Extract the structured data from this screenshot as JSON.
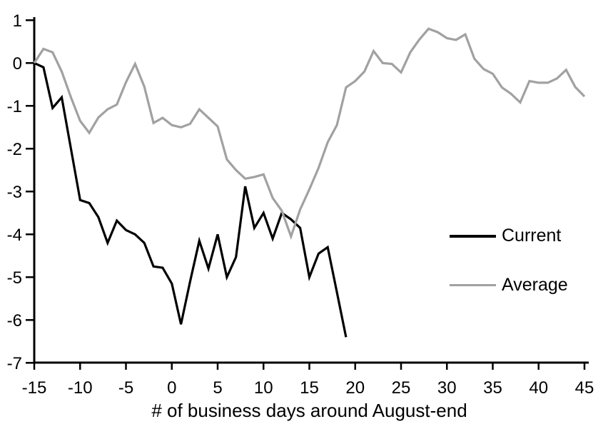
{
  "chart_data": {
    "type": "line",
    "title": "",
    "xlabel": "# of business days around August-end",
    "ylabel": "",
    "xlim": [
      -15,
      45
    ],
    "ylim": [
      -7,
      1
    ],
    "xticks": [
      -15,
      -10,
      -5,
      0,
      5,
      10,
      15,
      20,
      25,
      30,
      35,
      40,
      45
    ],
    "yticks": [
      1,
      0,
      -1,
      -2,
      -3,
      -4,
      -5,
      -6,
      -7
    ],
    "grid": false,
    "legend_position": "right-middle",
    "axis_color": "#000000",
    "series": [
      {
        "name": "Current",
        "color": "#000000",
        "x": [
          -15,
          -14,
          -13,
          -12,
          -11,
          -10,
          -9,
          -8,
          -7,
          -6,
          -5,
          -4,
          -3,
          -2,
          -1,
          0,
          1,
          2,
          3,
          4,
          5,
          6,
          7,
          8,
          9,
          10,
          11,
          12,
          13,
          14,
          15,
          16,
          17,
          18,
          19
        ],
        "values": [
          0.0,
          -0.1,
          -1.05,
          -0.8,
          -2.0,
          -3.2,
          -3.27,
          -3.6,
          -4.2,
          -3.68,
          -3.9,
          -4.0,
          -4.2,
          -4.75,
          -4.78,
          -5.15,
          -6.1,
          -5.1,
          -4.15,
          -4.8,
          -4.0,
          -5.0,
          -4.53,
          -2.88,
          -3.85,
          -3.5,
          -4.1,
          -3.5,
          -3.65,
          -3.85,
          -5.0,
          -4.45,
          -4.3,
          -5.35,
          -6.4
        ]
      },
      {
        "name": "Average",
        "color": "#a1a1a1",
        "x": [
          -15,
          -14,
          -13,
          -12,
          -11,
          -10,
          -9,
          -8,
          -7,
          -6,
          -5,
          -4,
          -3,
          -2,
          -1,
          0,
          1,
          2,
          3,
          4,
          5,
          6,
          7,
          8,
          9,
          10,
          11,
          12,
          13,
          14,
          15,
          16,
          17,
          18,
          19,
          20,
          21,
          22,
          23,
          24,
          25,
          26,
          27,
          28,
          29,
          30,
          31,
          32,
          33,
          34,
          35,
          36,
          37,
          38,
          39,
          40,
          41,
          42,
          43,
          44,
          45
        ],
        "values": [
          0.0,
          0.33,
          0.25,
          -0.2,
          -0.8,
          -1.35,
          -1.63,
          -1.27,
          -1.08,
          -0.97,
          -0.45,
          -0.02,
          -0.55,
          -1.4,
          -1.28,
          -1.45,
          -1.5,
          -1.42,
          -1.08,
          -1.28,
          -1.48,
          -2.25,
          -2.5,
          -2.7,
          -2.66,
          -2.6,
          -3.15,
          -3.45,
          -4.05,
          -3.42,
          -2.95,
          -2.45,
          -1.85,
          -1.45,
          -0.57,
          -0.42,
          -0.2,
          0.28,
          0.0,
          -0.02,
          -0.22,
          0.25,
          0.55,
          0.8,
          0.72,
          0.58,
          0.54,
          0.67,
          0.1,
          -0.14,
          -0.25,
          -0.57,
          -0.72,
          -0.92,
          -0.42,
          -0.46,
          -0.46,
          -0.36,
          -0.16,
          -0.56,
          -0.78
        ]
      }
    ]
  },
  "legend": {
    "current_label": "Current",
    "average_label": "Average"
  }
}
